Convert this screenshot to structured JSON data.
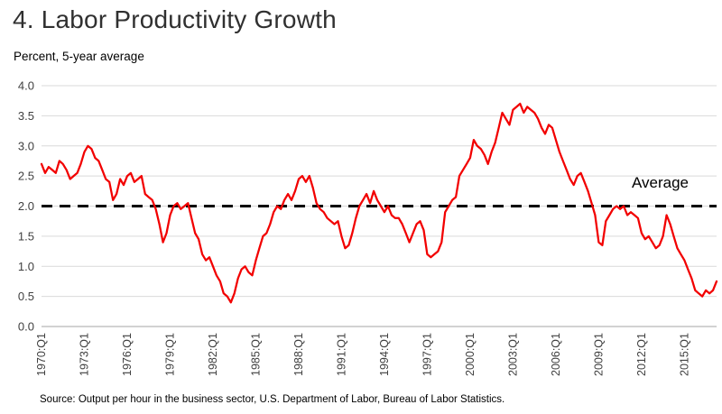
{
  "chart_data": {
    "type": "line",
    "title": "4. Labor Productivity Growth",
    "subtitle": "Percent, 5-year average",
    "grid": "horizontal",
    "legend": "none",
    "ylim": [
      0,
      4
    ],
    "y_tick_labels": [
      "0.0",
      "0.5",
      "1.0",
      "1.5",
      "2.0",
      "2.5",
      "3.0",
      "3.5",
      "4.0"
    ],
    "x_tick_labels": [
      "1970:Q1",
      "1973:Q1",
      "1976:Q1",
      "1979:Q1",
      "1982:Q1",
      "1985:Q1",
      "1988:Q1",
      "1991:Q1",
      "1994:Q1",
      "1997:Q1",
      "2000:Q1",
      "2003:Q1",
      "2006:Q1",
      "2009:Q1",
      "2012:Q1",
      "2015:Q1"
    ],
    "x_start": "1970:Q1",
    "x_frequency": "quarterly",
    "average_line": {
      "value": 2.0,
      "label": "Average",
      "style": "dashed",
      "color": "#000000"
    },
    "series": [
      {
        "color": "#f20000",
        "values": [
          2.7,
          2.55,
          2.65,
          2.6,
          2.55,
          2.75,
          2.7,
          2.6,
          2.45,
          2.5,
          2.55,
          2.7,
          2.9,
          3.0,
          2.95,
          2.8,
          2.75,
          2.6,
          2.45,
          2.4,
          2.1,
          2.2,
          2.45,
          2.35,
          2.5,
          2.55,
          2.4,
          2.45,
          2.5,
          2.2,
          2.15,
          2.1,
          1.95,
          1.7,
          1.4,
          1.55,
          1.85,
          2.0,
          2.05,
          1.95,
          2.0,
          2.05,
          1.8,
          1.55,
          1.45,
          1.2,
          1.1,
          1.15,
          1.0,
          0.85,
          0.75,
          0.55,
          0.5,
          0.4,
          0.55,
          0.8,
          0.95,
          1.0,
          0.9,
          0.85,
          1.1,
          1.3,
          1.5,
          1.55,
          1.7,
          1.9,
          2.0,
          1.95,
          2.1,
          2.2,
          2.1,
          2.25,
          2.45,
          2.5,
          2.4,
          2.5,
          2.3,
          2.05,
          1.95,
          1.9,
          1.8,
          1.75,
          1.7,
          1.75,
          1.5,
          1.3,
          1.35,
          1.55,
          1.8,
          2.0,
          2.1,
          2.2,
          2.05,
          2.25,
          2.1,
          2.0,
          1.9,
          2.0,
          1.85,
          1.8,
          1.8,
          1.7,
          1.55,
          1.4,
          1.55,
          1.7,
          1.75,
          1.6,
          1.2,
          1.15,
          1.2,
          1.25,
          1.4,
          1.9,
          2.0,
          2.1,
          2.15,
          2.5,
          2.6,
          2.7,
          2.8,
          3.1,
          3.0,
          2.95,
          2.85,
          2.7,
          2.9,
          3.05,
          3.3,
          3.55,
          3.45,
          3.35,
          3.6,
          3.65,
          3.7,
          3.55,
          3.65,
          3.6,
          3.55,
          3.45,
          3.3,
          3.2,
          3.35,
          3.3,
          3.1,
          2.9,
          2.75,
          2.6,
          2.45,
          2.35,
          2.5,
          2.55,
          2.4,
          2.25,
          2.05,
          1.85,
          1.4,
          1.35,
          1.75,
          1.85,
          1.95,
          2.0,
          1.95,
          2.0,
          1.85,
          1.9,
          1.85,
          1.8,
          1.55,
          1.45,
          1.5,
          1.4,
          1.3,
          1.35,
          1.5,
          1.85,
          1.7,
          1.5,
          1.3,
          1.2,
          1.1,
          0.95,
          0.8,
          0.6,
          0.55,
          0.5,
          0.6,
          0.55,
          0.6,
          0.75
        ]
      }
    ],
    "source": "Source: Output per hour in the business sector, U.S. Department of Labor, Bureau of Labor Statistics."
  }
}
